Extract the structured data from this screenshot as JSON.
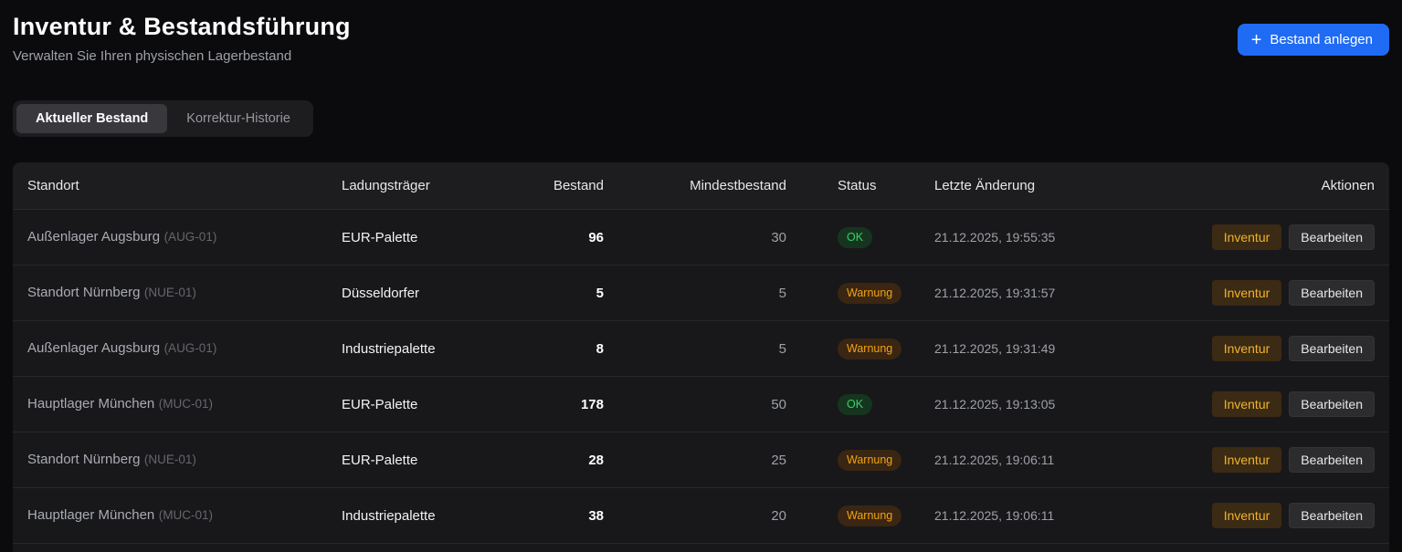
{
  "header": {
    "title": "Inventur & Bestandsführung",
    "subtitle": "Verwalten Sie Ihren physischen Lagerbestand",
    "create_button": {
      "icon": "+",
      "label": "Bestand anlegen"
    }
  },
  "tabs": [
    {
      "label": "Aktueller Bestand",
      "active": true
    },
    {
      "label": "Korrektur-Historie",
      "active": false
    }
  ],
  "table": {
    "columns": {
      "standort": "Standort",
      "ladungstraeger": "Ladungsträger",
      "bestand": "Bestand",
      "mindestbestand": "Mindestbestand",
      "status": "Status",
      "letzte_aenderung": "Letzte Änderung",
      "aktionen": "Aktionen"
    },
    "action_labels": {
      "inventur": "Inventur",
      "bearbeiten": "Bearbeiten"
    },
    "rows": [
      {
        "standort": "Außenlager Augsburg",
        "code": "(AUG-01)",
        "ladungstraeger": "EUR-Palette",
        "bestand": "96",
        "mindestbestand": "30",
        "status": "OK",
        "letzte_aenderung": "21.12.2025, 19:55:35"
      },
      {
        "standort": "Standort Nürnberg",
        "code": "(NUE-01)",
        "ladungstraeger": "Düsseldorfer",
        "bestand": "5",
        "mindestbestand": "5",
        "status": "Warnung",
        "letzte_aenderung": "21.12.2025, 19:31:57"
      },
      {
        "standort": "Außenlager Augsburg",
        "code": "(AUG-01)",
        "ladungstraeger": "Industriepalette",
        "bestand": "8",
        "mindestbestand": "5",
        "status": "Warnung",
        "letzte_aenderung": "21.12.2025, 19:31:49"
      },
      {
        "standort": "Hauptlager München",
        "code": "(MUC-01)",
        "ladungstraeger": "EUR-Palette",
        "bestand": "178",
        "mindestbestand": "50",
        "status": "OK",
        "letzte_aenderung": "21.12.2025, 19:13:05"
      },
      {
        "standort": "Standort Nürnberg",
        "code": "(NUE-01)",
        "ladungstraeger": "EUR-Palette",
        "bestand": "28",
        "mindestbestand": "25",
        "status": "Warnung",
        "letzte_aenderung": "21.12.2025, 19:06:11"
      },
      {
        "standort": "Hauptlager München",
        "code": "(MUC-01)",
        "ladungstraeger": "Industriepalette",
        "bestand": "38",
        "mindestbestand": "20",
        "status": "Warnung",
        "letzte_aenderung": "21.12.2025, 19:06:11"
      }
    ]
  },
  "colors": {
    "page_background": "#0b0b0d",
    "table_background": "#18181a",
    "accent_blue": "#1f6bf4",
    "status_ok_text": "#39d069",
    "status_warn_text": "#f2a313",
    "inventur_text": "#f0b429"
  }
}
